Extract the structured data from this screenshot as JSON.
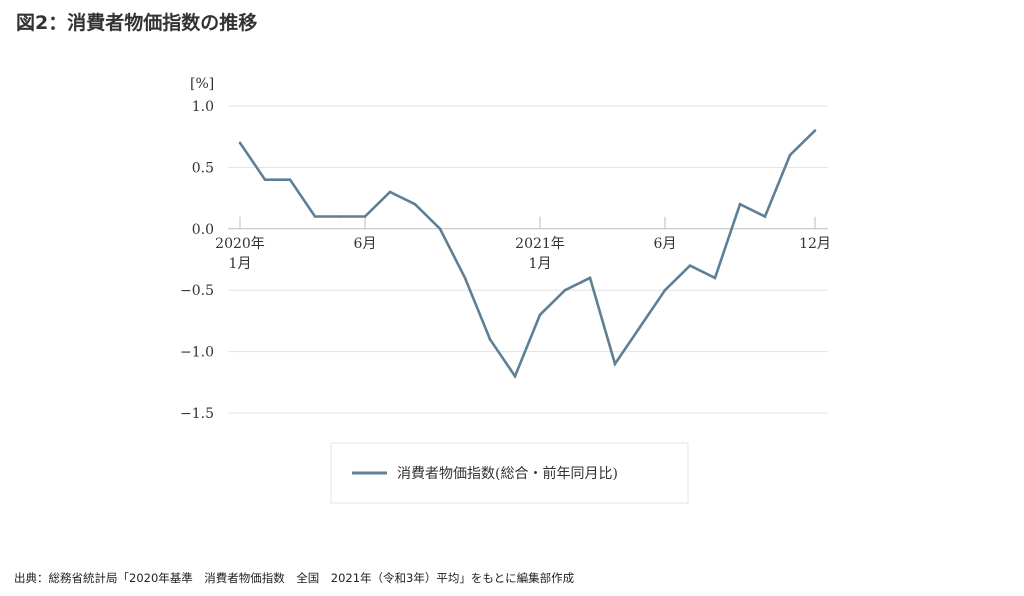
{
  "page": {
    "title": "図2：消費者物価指数の推移",
    "source": "出典：総務省統計局「2020年基準　消費者物価指数　全国　2021年（令和3年）平均」をもとに編集部作成"
  },
  "chart_data": {
    "type": "line",
    "title": "",
    "ylabel": "[%]",
    "xlabel": "",
    "ylim": [
      -1.5,
      1.0
    ],
    "yticks": [
      "1.0",
      "0.5",
      "0.0",
      "−0.5",
      "−1.0",
      "−1.5"
    ],
    "ytick_values": [
      1.0,
      0.5,
      0.0,
      -0.5,
      -1.0,
      -1.5
    ],
    "x": [
      "2020年1月",
      "2020年2月",
      "2020年3月",
      "2020年4月",
      "2020年5月",
      "2020年6月",
      "2020年7月",
      "2020年8月",
      "2020年9月",
      "2020年10月",
      "2020年11月",
      "2020年12月",
      "2021年1月",
      "2021年2月",
      "2021年3月",
      "2021年4月",
      "2021年5月",
      "2021年6月",
      "2021年7月",
      "2021年8月",
      "2021年9月",
      "2021年10月",
      "2021年11月",
      "2021年12月"
    ],
    "xtick_labels": [
      {
        "index": 0,
        "lines": [
          "2020年",
          "1月"
        ]
      },
      {
        "index": 5,
        "lines": [
          "6月"
        ]
      },
      {
        "index": 12,
        "lines": [
          "2021年",
          "1月"
        ]
      },
      {
        "index": 17,
        "lines": [
          "6月"
        ]
      },
      {
        "index": 23,
        "lines": [
          "12月"
        ]
      }
    ],
    "grid": true,
    "legend_position": "bottom-center",
    "series": [
      {
        "name": "消費者物価指数(総合・前年同月比)",
        "color": "#5f7f95",
        "values": [
          0.7,
          0.4,
          0.4,
          0.1,
          0.1,
          0.1,
          0.3,
          0.2,
          0.0,
          -0.4,
          -0.9,
          -1.2,
          -0.7,
          -0.5,
          -0.4,
          -1.1,
          -0.8,
          -0.5,
          -0.3,
          -0.4,
          0.2,
          0.1,
          0.6,
          0.8
        ]
      }
    ]
  }
}
